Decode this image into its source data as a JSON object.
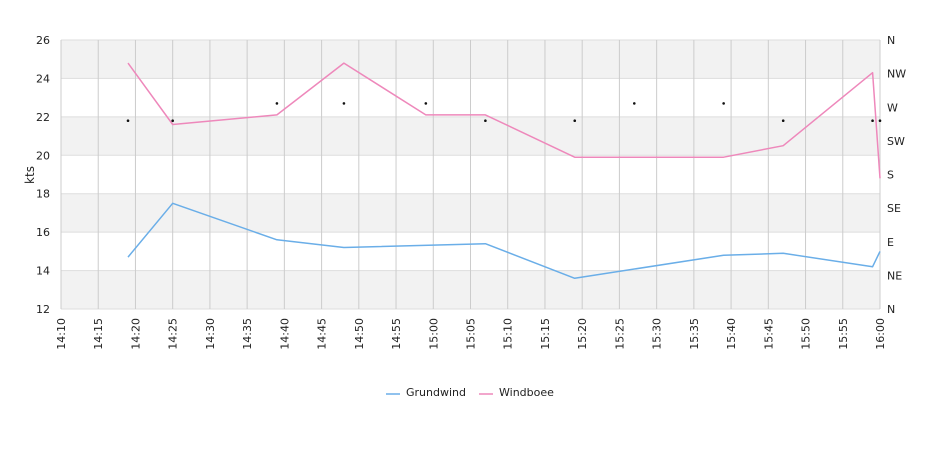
{
  "chart_data": {
    "type": "line",
    "xlabel": "",
    "ylabel": "kts",
    "x_ticks": [
      "14:10",
      "14:15",
      "14:20",
      "14:25",
      "14:30",
      "14:35",
      "14:40",
      "14:45",
      "14:50",
      "14:55",
      "15:00",
      "15:05",
      "15:10",
      "15:15",
      "15:20",
      "15:25",
      "15:30",
      "15:35",
      "15:40",
      "15:45",
      "15:50",
      "15:55",
      "16:00"
    ],
    "xlim": [
      "14:10",
      "16:00"
    ],
    "ylim": [
      12,
      26
    ],
    "y_ticks": [
      12,
      14,
      16,
      18,
      20,
      22,
      24,
      26
    ],
    "y2_ticks": [
      "N",
      "NE",
      "E",
      "SE",
      "S",
      "SW",
      "W",
      "NW",
      "N"
    ],
    "grid": true,
    "legend_position": "bottom",
    "series": [
      {
        "name": "Grundwind",
        "color": "#6aaee8",
        "points": [
          [
            "14:19",
            14.7
          ],
          [
            "14:25",
            17.5
          ],
          [
            "14:39",
            15.6
          ],
          [
            "14:48",
            15.2
          ],
          [
            "15:07",
            15.4
          ],
          [
            "15:19",
            13.6
          ],
          [
            "15:39",
            14.8
          ],
          [
            "15:47",
            14.9
          ],
          [
            "15:59",
            14.2
          ],
          [
            "16:00",
            15.0
          ]
        ]
      },
      {
        "name": "Windboee",
        "color": "#ee88bb",
        "points": [
          [
            "14:19",
            24.8
          ],
          [
            "14:25",
            21.6
          ],
          [
            "14:39",
            22.1
          ],
          [
            "14:48",
            24.8
          ],
          [
            "14:59",
            22.1
          ],
          [
            "15:07",
            22.1
          ],
          [
            "15:19",
            19.9
          ],
          [
            "15:39",
            19.9
          ],
          [
            "15:47",
            20.5
          ],
          [
            "15:59",
            24.3
          ],
          [
            "16:00",
            18.8
          ]
        ]
      }
    ],
    "direction_markers": [
      [
        "14:19",
        21.8
      ],
      [
        "14:25",
        21.8
      ],
      [
        "14:39",
        22.7
      ],
      [
        "14:48",
        22.7
      ],
      [
        "14:59",
        22.7
      ],
      [
        "15:07",
        21.8
      ],
      [
        "15:19",
        21.8
      ],
      [
        "15:27",
        22.7
      ],
      [
        "15:39",
        22.7
      ],
      [
        "15:47",
        21.8
      ],
      [
        "15:59",
        21.8
      ],
      [
        "16:00",
        21.8
      ]
    ]
  }
}
